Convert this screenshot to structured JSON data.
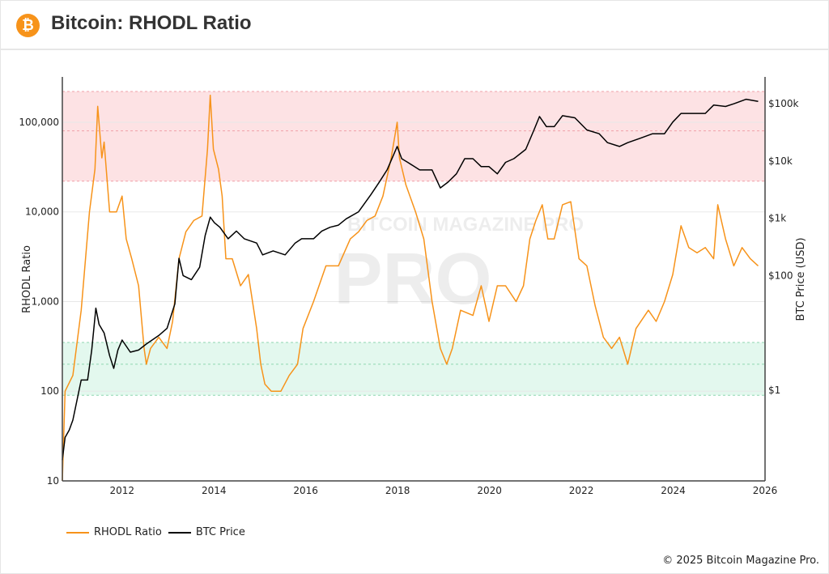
{
  "header": {
    "title": "Bitcoin: RHODL Ratio",
    "logo_icon": "bitcoin-icon",
    "logo_glyph": "₿"
  },
  "footer": {
    "copyright": "© 2025 Bitcoin Magazine Pro."
  },
  "watermark": "BITCOIN MAGAZINE PRO",
  "colors": {
    "rhodl": "#f7931a",
    "price": "#000000",
    "red_zone": "#fde2e4",
    "green_zone": "#e3f8ee"
  },
  "chart_data": {
    "type": "line",
    "xlabel": "",
    "xlim": [
      2010.7,
      2026.0
    ],
    "x_ticks": [
      "2012",
      "2014",
      "2016",
      "2018",
      "2020",
      "2022",
      "2024",
      "2026"
    ],
    "y_left": {
      "label": "RHODL Ratio",
      "scale": "log",
      "lim": [
        10,
        320000
      ],
      "ticks": [
        "10",
        "100",
        "1,000",
        "10,000",
        "100,000"
      ]
    },
    "y_right": {
      "label": "BTC Price (USD)",
      "scale": "log",
      "lim": [
        0.026,
        295000
      ],
      "ticks": [
        "$1",
        "$100",
        "$1k",
        "$10k",
        "$100k"
      ]
    },
    "grid": true,
    "legend": "bottom-left",
    "bands": [
      {
        "zone": "red",
        "axis": "left",
        "from": 22000,
        "to": 220000,
        "mid": 80000
      },
      {
        "zone": "green",
        "axis": "left",
        "from": 90,
        "to": 350,
        "mid": 200
      }
    ],
    "series": [
      {
        "name": "RHODL Ratio",
        "axis": "left",
        "points": [
          [
            2010.7,
            10
          ],
          [
            2010.76,
            100
          ],
          [
            2010.93,
            150
          ],
          [
            2011.11,
            800
          ],
          [
            2011.29,
            10000
          ],
          [
            2011.41,
            30000
          ],
          [
            2011.47,
            150000
          ],
          [
            2011.56,
            40000
          ],
          [
            2011.61,
            60000
          ],
          [
            2011.73,
            10000
          ],
          [
            2011.88,
            10000
          ],
          [
            2012.0,
            15000
          ],
          [
            2012.09,
            5000
          ],
          [
            2012.21,
            3000
          ],
          [
            2012.36,
            1500
          ],
          [
            2012.48,
            300
          ],
          [
            2012.53,
            200
          ],
          [
            2012.62,
            300
          ],
          [
            2012.8,
            400
          ],
          [
            2012.98,
            300
          ],
          [
            2013.1,
            600
          ],
          [
            2013.24,
            3000
          ],
          [
            2013.39,
            6000
          ],
          [
            2013.56,
            8000
          ],
          [
            2013.74,
            9000
          ],
          [
            2013.86,
            50000
          ],
          [
            2013.92,
            200000
          ],
          [
            2013.99,
            50000
          ],
          [
            2014.1,
            30000
          ],
          [
            2014.18,
            15000
          ],
          [
            2014.26,
            3000
          ],
          [
            2014.4,
            3000
          ],
          [
            2014.58,
            1500
          ],
          [
            2014.75,
            2000
          ],
          [
            2014.93,
            500
          ],
          [
            2015.02,
            200
          ],
          [
            2015.11,
            120
          ],
          [
            2015.25,
            100
          ],
          [
            2015.46,
            100
          ],
          [
            2015.64,
            150
          ],
          [
            2015.82,
            200
          ],
          [
            2015.94,
            500
          ],
          [
            2016.17,
            1000
          ],
          [
            2016.44,
            2500
          ],
          [
            2016.71,
            2500
          ],
          [
            2016.97,
            5000
          ],
          [
            2017.15,
            6000
          ],
          [
            2017.33,
            8000
          ],
          [
            2017.51,
            9000
          ],
          [
            2017.68,
            15000
          ],
          [
            2017.86,
            40000
          ],
          [
            2017.99,
            100000
          ],
          [
            2018.04,
            40000
          ],
          [
            2018.18,
            20000
          ],
          [
            2018.39,
            10000
          ],
          [
            2018.57,
            5000
          ],
          [
            2018.75,
            1000
          ],
          [
            2018.93,
            300
          ],
          [
            2019.07,
            200
          ],
          [
            2019.19,
            300
          ],
          [
            2019.37,
            800
          ],
          [
            2019.64,
            700
          ],
          [
            2019.82,
            1500
          ],
          [
            2019.99,
            600
          ],
          [
            2020.17,
            1500
          ],
          [
            2020.35,
            1500
          ],
          [
            2020.58,
            1000
          ],
          [
            2020.74,
            1500
          ],
          [
            2020.88,
            5000
          ],
          [
            2021.01,
            8000
          ],
          [
            2021.15,
            12000
          ],
          [
            2021.27,
            5000
          ],
          [
            2021.41,
            5000
          ],
          [
            2021.59,
            12000
          ],
          [
            2021.77,
            13000
          ],
          [
            2021.95,
            3000
          ],
          [
            2022.12,
            2500
          ],
          [
            2022.3,
            900
          ],
          [
            2022.48,
            400
          ],
          [
            2022.66,
            300
          ],
          [
            2022.83,
            400
          ],
          [
            2023.01,
            200
          ],
          [
            2023.19,
            500
          ],
          [
            2023.46,
            800
          ],
          [
            2023.63,
            600
          ],
          [
            2023.81,
            1000
          ],
          [
            2023.99,
            2000
          ],
          [
            2024.17,
            7000
          ],
          [
            2024.34,
            4000
          ],
          [
            2024.52,
            3500
          ],
          [
            2024.7,
            4000
          ],
          [
            2024.88,
            3000
          ],
          [
            2024.97,
            12000
          ],
          [
            2025.14,
            5000
          ],
          [
            2025.32,
            2500
          ],
          [
            2025.5,
            4000
          ],
          [
            2025.68,
            3000
          ],
          [
            2025.85,
            2500
          ]
        ]
      },
      {
        "name": "BTC Price",
        "axis": "right",
        "points": [
          [
            2010.7,
            0.06
          ],
          [
            2010.76,
            0.15
          ],
          [
            2010.85,
            0.2
          ],
          [
            2010.93,
            0.3
          ],
          [
            2011.11,
            1.5
          ],
          [
            2011.25,
            1.5
          ],
          [
            2011.34,
            5
          ],
          [
            2011.43,
            27
          ],
          [
            2011.5,
            14
          ],
          [
            2011.61,
            10
          ],
          [
            2011.73,
            4
          ],
          [
            2011.82,
            2.4
          ],
          [
            2011.91,
            5
          ],
          [
            2012.0,
            7.5
          ],
          [
            2012.18,
            4.6
          ],
          [
            2012.36,
            5
          ],
          [
            2012.53,
            6.4
          ],
          [
            2012.8,
            9
          ],
          [
            2012.98,
            12
          ],
          [
            2013.15,
            32
          ],
          [
            2013.24,
            200
          ],
          [
            2013.33,
            100
          ],
          [
            2013.51,
            85
          ],
          [
            2013.69,
            140
          ],
          [
            2013.81,
            500
          ],
          [
            2013.92,
            1050
          ],
          [
            2014.01,
            840
          ],
          [
            2014.13,
            700
          ],
          [
            2014.31,
            440
          ],
          [
            2014.49,
            600
          ],
          [
            2014.66,
            440
          ],
          [
            2014.93,
            370
          ],
          [
            2015.06,
            230
          ],
          [
            2015.29,
            270
          ],
          [
            2015.55,
            230
          ],
          [
            2015.77,
            370
          ],
          [
            2015.91,
            440
          ],
          [
            2016.17,
            440
          ],
          [
            2016.35,
            600
          ],
          [
            2016.53,
            700
          ],
          [
            2016.71,
            760
          ],
          [
            2016.88,
            980
          ],
          [
            2017.15,
            1300
          ],
          [
            2017.42,
            2600
          ],
          [
            2017.6,
            4300
          ],
          [
            2017.77,
            7000
          ],
          [
            2017.99,
            18000
          ],
          [
            2018.09,
            11000
          ],
          [
            2018.22,
            9500
          ],
          [
            2018.48,
            7000
          ],
          [
            2018.75,
            7000
          ],
          [
            2018.93,
            3400
          ],
          [
            2019.1,
            4300
          ],
          [
            2019.28,
            6000
          ],
          [
            2019.46,
            11000
          ],
          [
            2019.64,
            11000
          ],
          [
            2019.82,
            8000
          ],
          [
            2019.99,
            8000
          ],
          [
            2020.17,
            6000
          ],
          [
            2020.35,
            9500
          ],
          [
            2020.53,
            11000
          ],
          [
            2020.79,
            16000
          ],
          [
            2020.97,
            35000
          ],
          [
            2021.09,
            60000
          ],
          [
            2021.24,
            40000
          ],
          [
            2021.41,
            40000
          ],
          [
            2021.59,
            62000
          ],
          [
            2021.86,
            57000
          ],
          [
            2022.12,
            35000
          ],
          [
            2022.39,
            30000
          ],
          [
            2022.57,
            21000
          ],
          [
            2022.83,
            18000
          ],
          [
            2023.01,
            21000
          ],
          [
            2023.28,
            25000
          ],
          [
            2023.55,
            30000
          ],
          [
            2023.81,
            30000
          ],
          [
            2023.99,
            48000
          ],
          [
            2024.17,
            68000
          ],
          [
            2024.43,
            68000
          ],
          [
            2024.7,
            68000
          ],
          [
            2024.88,
            95000
          ],
          [
            2025.14,
            90000
          ],
          [
            2025.32,
            100000
          ],
          [
            2025.59,
            120000
          ],
          [
            2025.85,
            110000
          ]
        ]
      }
    ]
  }
}
